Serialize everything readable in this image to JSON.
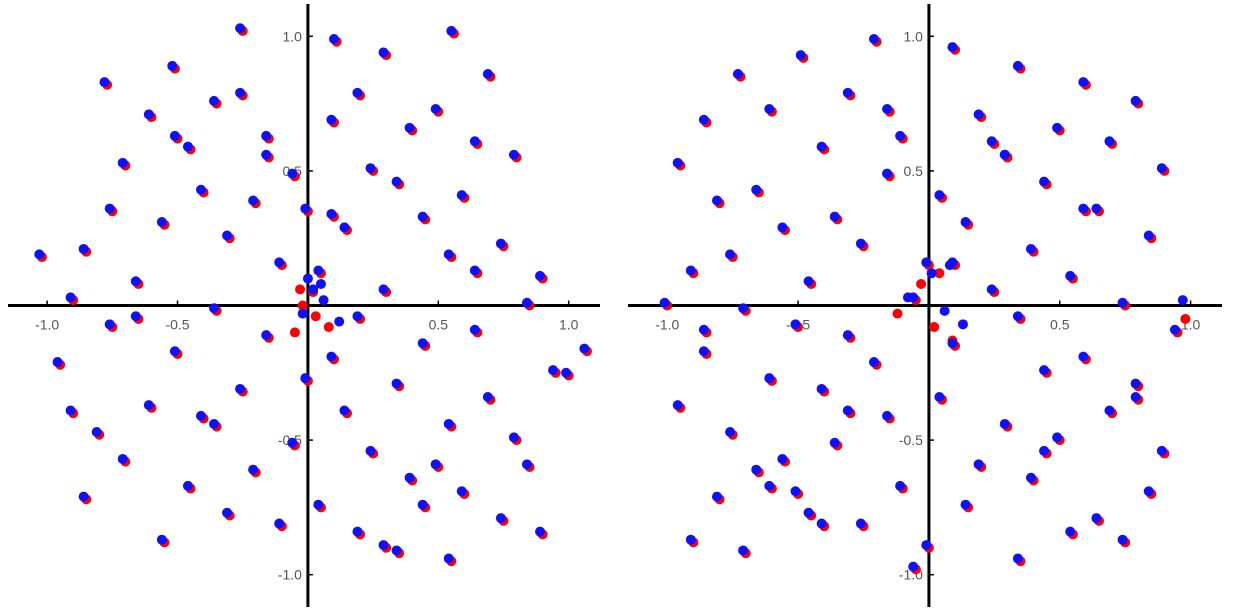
{
  "chart_data": [
    {
      "type": "scatter",
      "title": "",
      "xlabel": "",
      "ylabel": "",
      "xlim": [
        -1.15,
        1.12
      ],
      "ylim": [
        -1.12,
        1.12
      ],
      "grid": false,
      "legend": "none",
      "x_ticks": [
        -1.0,
        -0.5,
        0.5,
        1.0
      ],
      "y_ticks": [
        1.0,
        0.5,
        -0.5,
        -1.0
      ],
      "x_tick_labels": [
        "-1.0",
        "-0.5",
        "0.5",
        "1.0"
      ],
      "y_tick_labels": [
        "1.0",
        "0.5",
        "-0.5",
        "-1.0"
      ],
      "series": [
        {
          "color": "#ff0000",
          "marker": "circle",
          "x": [
            -0.25,
            0.56,
            0.11,
            -0.77,
            0.3,
            -0.51,
            0.7,
            0.2,
            -0.35,
            0.5,
            -0.6,
            0.1,
            0.4,
            -0.15,
            0.65,
            -0.45,
            0.8,
            -0.7,
            0.25,
            -0.05,
            0.35,
            -0.4,
            0.6,
            -0.2,
            0.0,
            0.45,
            -0.55,
            0.15,
            -0.3,
            0.75,
            -0.85,
            0.55,
            -0.1,
            0.05,
            0.9,
            -0.65,
            0.3,
            -0.9,
            0.85,
            -0.35,
            0.2,
            -0.75,
            0.65,
            -0.15,
            0.45,
            -0.5,
            0.1,
            -0.95,
            0.95,
            0.0,
            0.35,
            -0.25,
            0.7,
            -0.6,
            0.15,
            -0.4,
            0.55,
            -0.8,
            0.8,
            -0.05,
            0.25,
            -0.7,
            0.5,
            -0.2,
            0.4,
            -0.45,
            0.6,
            -0.85,
            0.05,
            -0.3,
            0.75,
            -0.1,
            0.9,
            -0.55,
            0.3,
            -0.65,
            0.1,
            -0.35,
            0.65,
            -0.9,
            0.85,
            -0.15,
            0.45,
            -0.75,
            0.2,
            -0.5,
            0.35,
            -0.25,
            0.55,
            -1.02,
            1.0,
            1.07,
            -0.02,
            0.08,
            -0.05,
            0.02,
            0.03,
            -0.03
          ],
          "y": [
            1.02,
            1.01,
            0.98,
            0.82,
            0.93,
            0.88,
            0.85,
            0.78,
            0.75,
            0.72,
            0.7,
            0.68,
            0.65,
            0.62,
            0.6,
            0.58,
            0.55,
            0.52,
            0.5,
            0.48,
            0.45,
            0.42,
            0.4,
            0.38,
            0.35,
            0.32,
            0.3,
            0.28,
            0.25,
            0.22,
            0.2,
            0.18,
            0.15,
            0.12,
            0.1,
            0.08,
            0.05,
            0.02,
            0.0,
            -0.02,
            -0.05,
            -0.08,
            -0.1,
            -0.12,
            -0.15,
            -0.18,
            -0.2,
            -0.22,
            -0.25,
            -0.28,
            -0.3,
            -0.32,
            -0.35,
            -0.38,
            -0.4,
            -0.42,
            -0.45,
            -0.48,
            -0.5,
            -0.52,
            -0.55,
            -0.58,
            -0.6,
            -0.62,
            -0.65,
            -0.68,
            -0.7,
            -0.72,
            -0.75,
            -0.78,
            -0.8,
            -0.82,
            -0.85,
            -0.88,
            -0.9,
            -0.05,
            0.33,
            -0.45,
            0.12,
            -0.4,
            -0.6,
            0.55,
            -0.75,
            0.35,
            -0.85,
            0.62,
            -0.92,
            0.78,
            -0.95,
            0.18,
            -0.26,
            -0.17,
            0.0,
            -0.08,
            -0.1,
            0.05,
            -0.04,
            0.06
          ]
        },
        {
          "color": "#1010ff",
          "marker": "circle",
          "x": [
            -0.26,
            0.55,
            0.1,
            -0.78,
            0.29,
            -0.52,
            0.69,
            0.19,
            -0.36,
            0.49,
            -0.61,
            0.09,
            0.39,
            -0.16,
            0.64,
            -0.46,
            0.79,
            -0.71,
            0.24,
            -0.06,
            0.34,
            -0.41,
            0.59,
            -0.21,
            -0.01,
            0.44,
            -0.56,
            0.14,
            -0.31,
            0.74,
            -0.86,
            0.54,
            -0.11,
            0.04,
            0.89,
            -0.66,
            0.29,
            -0.91,
            0.84,
            -0.36,
            0.19,
            -0.76,
            0.64,
            -0.16,
            0.44,
            -0.51,
            0.09,
            -0.96,
            0.94,
            -0.01,
            0.34,
            -0.26,
            0.69,
            -0.61,
            0.14,
            -0.41,
            0.54,
            -0.81,
            0.79,
            -0.06,
            0.24,
            -0.71,
            0.49,
            -0.21,
            0.39,
            -0.46,
            0.59,
            -0.86,
            0.04,
            -0.31,
            0.74,
            -0.11,
            0.89,
            -0.56,
            0.29,
            -0.66,
            0.09,
            -0.36,
            0.64,
            -0.91,
            0.84,
            -0.16,
            0.44,
            -0.76,
            0.19,
            -0.51,
            0.34,
            -0.26,
            0.54,
            -1.03,
            0.99,
            1.06,
            0.02,
            0.12,
            -0.02,
            0.05,
            0.06,
            0.0
          ],
          "y": [
            1.03,
            1.02,
            0.99,
            0.83,
            0.94,
            0.89,
            0.86,
            0.79,
            0.76,
            0.73,
            0.71,
            0.69,
            0.66,
            0.63,
            0.61,
            0.59,
            0.56,
            0.53,
            0.51,
            0.49,
            0.46,
            0.43,
            0.41,
            0.39,
            0.36,
            0.33,
            0.31,
            0.29,
            0.26,
            0.23,
            0.21,
            0.19,
            0.16,
            0.13,
            0.11,
            0.09,
            0.06,
            0.03,
            0.01,
            -0.01,
            -0.04,
            -0.07,
            -0.09,
            -0.11,
            -0.14,
            -0.17,
            -0.19,
            -0.21,
            -0.24,
            -0.27,
            -0.29,
            -0.31,
            -0.34,
            -0.37,
            -0.39,
            -0.41,
            -0.44,
            -0.47,
            -0.49,
            -0.51,
            -0.54,
            -0.57,
            -0.59,
            -0.61,
            -0.64,
            -0.67,
            -0.69,
            -0.71,
            -0.74,
            -0.77,
            -0.79,
            -0.81,
            -0.84,
            -0.87,
            -0.89,
            -0.04,
            0.34,
            -0.44,
            0.13,
            -0.39,
            -0.59,
            0.56,
            -0.74,
            0.36,
            -0.84,
            0.63,
            -0.91,
            0.79,
            -0.94,
            0.19,
            -0.25,
            -0.16,
            0.06,
            -0.06,
            -0.03,
            0.08,
            0.02,
            0.1
          ]
        }
      ]
    },
    {
      "type": "scatter",
      "title": "",
      "xlabel": "",
      "ylabel": "",
      "xlim": [
        -1.15,
        1.12
      ],
      "ylim": [
        -1.12,
        1.12
      ],
      "grid": false,
      "legend": "none",
      "x_ticks": [
        -1.0,
        -0.5,
        0.5,
        1.0
      ],
      "y_ticks": [
        1.0,
        0.5,
        -0.5,
        -1.0
      ],
      "x_tick_labels": [
        "-1.0",
        "-0.5",
        "0.5",
        "1.0"
      ],
      "y_tick_labels": [
        "1.0",
        "0.5",
        "-0.5",
        "-1.0"
      ],
      "series": [
        {
          "color": "#ff0000",
          "marker": "circle",
          "x": [
            -0.2,
            0.1,
            -0.48,
            0.35,
            -0.72,
            0.6,
            -0.3,
            0.8,
            -0.6,
            0.2,
            -0.85,
            0.5,
            -0.1,
            0.7,
            -0.4,
            0.3,
            -0.95,
            0.9,
            -0.15,
            0.45,
            -0.65,
            0.05,
            -0.8,
            0.65,
            -0.35,
            0.15,
            -0.55,
            0.85,
            -0.25,
            0.4,
            -0.75,
            0.0,
            -0.9,
            0.55,
            -0.45,
            0.25,
            -0.05,
            0.75,
            -0.7,
            0.35,
            -0.5,
            0.95,
            -0.3,
            0.1,
            -0.85,
            0.6,
            -0.2,
            0.45,
            -0.6,
            0.8,
            -0.4,
            0.05,
            -0.95,
            0.7,
            -0.15,
            0.3,
            -0.75,
            0.5,
            -0.35,
            0.9,
            -0.55,
            0.2,
            -0.65,
            0.4,
            -0.1,
            0.85,
            -0.8,
            0.15,
            -0.45,
            0.65,
            -0.25,
            0.55,
            -0.9,
            0.0,
            -0.7,
            0.35,
            -0.05,
            0.75,
            -0.5,
            0.25,
            -0.3,
            0.6,
            -0.85,
            0.45,
            -0.15,
            0.1,
            -0.6,
            0.3,
            -0.4,
            0.8,
            -1.0,
            0.98,
            0.04,
            0.02,
            0.09,
            -0.03,
            -0.12
          ],
          "y": [
            0.98,
            0.95,
            0.92,
            0.88,
            0.85,
            0.82,
            0.78,
            0.75,
            0.72,
            0.7,
            0.68,
            0.65,
            0.62,
            0.6,
            0.58,
            0.55,
            0.52,
            0.5,
            0.48,
            0.45,
            0.42,
            0.4,
            0.38,
            0.35,
            0.32,
            0.3,
            0.28,
            0.25,
            0.22,
            0.2,
            0.18,
            0.15,
            0.12,
            0.1,
            0.08,
            0.05,
            0.02,
            0.0,
            -0.02,
            -0.05,
            -0.08,
            -0.1,
            -0.12,
            -0.15,
            -0.18,
            -0.2,
            -0.22,
            -0.25,
            -0.28,
            -0.3,
            -0.32,
            -0.35,
            -0.38,
            -0.4,
            -0.42,
            -0.45,
            -0.48,
            -0.5,
            -0.52,
            -0.55,
            -0.58,
            -0.6,
            -0.62,
            -0.65,
            -0.68,
            -0.7,
            -0.72,
            -0.75,
            -0.78,
            -0.8,
            -0.82,
            -0.85,
            -0.88,
            -0.9,
            -0.92,
            -0.95,
            -0.98,
            -0.88,
            -0.7,
            0.6,
            -0.4,
            0.35,
            -0.1,
            -0.55,
            0.72,
            0.15,
            -0.68,
            0.55,
            -0.82,
            -0.35,
            0.0,
            -0.05,
            0.12,
            -0.08,
            -0.13,
            0.08,
            -0.03
          ]
        },
        {
          "color": "#1010ff",
          "marker": "circle",
          "x": [
            -0.21,
            0.09,
            -0.49,
            0.34,
            -0.73,
            0.59,
            -0.31,
            0.79,
            -0.61,
            0.19,
            -0.86,
            0.49,
            -0.11,
            0.69,
            -0.41,
            0.29,
            -0.96,
            0.89,
            -0.16,
            0.44,
            -0.66,
            0.04,
            -0.81,
            0.64,
            -0.36,
            0.14,
            -0.56,
            0.84,
            -0.26,
            0.39,
            -0.76,
            -0.01,
            -0.91,
            0.54,
            -0.46,
            0.24,
            -0.06,
            0.74,
            -0.71,
            0.34,
            -0.51,
            0.94,
            -0.31,
            0.09,
            -0.86,
            0.59,
            -0.21,
            0.44,
            -0.61,
            0.79,
            -0.41,
            0.04,
            -0.96,
            0.69,
            -0.16,
            0.29,
            -0.76,
            0.49,
            -0.36,
            0.89,
            -0.56,
            0.19,
            -0.66,
            0.39,
            -0.11,
            0.84,
            -0.81,
            0.14,
            -0.46,
            0.64,
            -0.26,
            0.54,
            -0.91,
            -0.01,
            -0.71,
            0.34,
            -0.06,
            0.74,
            -0.51,
            0.24,
            -0.31,
            0.59,
            -0.86,
            0.44,
            -0.16,
            0.09,
            -0.61,
            0.29,
            -0.41,
            0.79,
            -1.01,
            0.97,
            0.08,
            0.06,
            0.13,
            0.01,
            -0.08
          ],
          "y": [
            0.99,
            0.96,
            0.93,
            0.89,
            0.86,
            0.83,
            0.79,
            0.76,
            0.73,
            0.71,
            0.69,
            0.66,
            0.63,
            0.61,
            0.59,
            0.56,
            0.53,
            0.51,
            0.49,
            0.46,
            0.43,
            0.41,
            0.39,
            0.36,
            0.33,
            0.31,
            0.29,
            0.26,
            0.23,
            0.21,
            0.19,
            0.16,
            0.13,
            0.11,
            0.09,
            0.06,
            0.03,
            0.01,
            -0.01,
            -0.04,
            -0.07,
            -0.09,
            -0.11,
            -0.14,
            -0.17,
            -0.19,
            -0.21,
            -0.24,
            -0.27,
            -0.29,
            -0.31,
            -0.34,
            -0.37,
            -0.39,
            -0.41,
            -0.44,
            -0.47,
            -0.49,
            -0.51,
            -0.54,
            -0.57,
            -0.59,
            -0.61,
            -0.64,
            -0.67,
            -0.69,
            -0.71,
            -0.74,
            -0.77,
            -0.79,
            -0.81,
            -0.84,
            -0.87,
            -0.89,
            -0.91,
            -0.94,
            -0.97,
            -0.87,
            -0.69,
            0.61,
            -0.39,
            0.36,
            -0.09,
            -0.54,
            0.73,
            0.16,
            -0.67,
            0.56,
            -0.81,
            -0.34,
            0.01,
            0.02,
            0.15,
            -0.02,
            -0.07,
            0.12,
            0.03
          ]
        }
      ]
    }
  ]
}
